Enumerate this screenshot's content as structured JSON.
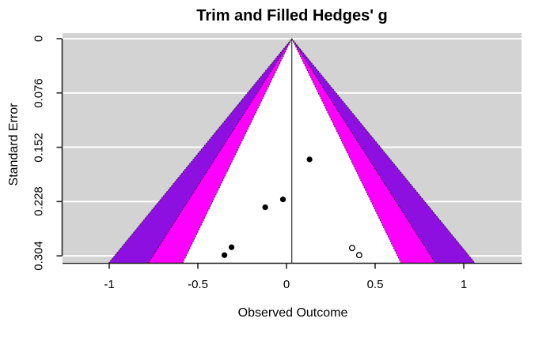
{
  "title": "Trim and Filled Hedges' g",
  "axes": {
    "x": {
      "label": "Observed Outcome",
      "ticks": [
        "-1",
        "-0.5",
        "0",
        "0.5",
        "1"
      ],
      "tick_values": [
        -1,
        -0.5,
        0,
        0.5,
        1
      ]
    },
    "y": {
      "label": "Standard Error",
      "ticks": [
        "0",
        "0.076",
        "0.152",
        "0.228",
        "0.304"
      ],
      "tick_values": [
        0,
        0.076,
        0.152,
        0.228,
        0.304
      ]
    }
  },
  "chart_data": {
    "type": "scatter",
    "subtype": "funnel-plot-trim-and-fill",
    "title": "Trim and Filled Hedges' g",
    "xlabel": "Observed Outcome",
    "ylabel": "Standard Error",
    "xlim": [
      -1.26,
      1.33
    ],
    "se_range": [
      0,
      0.314
    ],
    "y_reversed": true,
    "grid": true,
    "legend": "none",
    "estimate": 0.03,
    "se_max": 0.314,
    "ci_regions": [
      {
        "level": "95%",
        "z": 1.96,
        "fill": "#ffffff"
      },
      {
        "level": "99%",
        "z": 2.576,
        "fill": "#ff00ff"
      },
      {
        "level": "99.9%",
        "z": 3.29,
        "fill": "#8e10e0"
      }
    ],
    "observed_points": [
      {
        "x": 0.13,
        "se": 0.169
      },
      {
        "x": -0.02,
        "se": 0.225
      },
      {
        "x": -0.12,
        "se": 0.236
      },
      {
        "x": -0.31,
        "se": 0.292
      },
      {
        "x": -0.35,
        "se": 0.303
      }
    ],
    "imputed_points": [
      {
        "x": 0.37,
        "se": 0.293
      },
      {
        "x": 0.41,
        "se": 0.303
      }
    ],
    "colors": {
      "plot_background": "#d3d3d3",
      "outer_background": "#ffffff",
      "gridline": "#ffffff",
      "observed_point": "#000000",
      "imputed_point_fill": "#ffffff",
      "imputed_point_stroke": "#000000",
      "axis_line": "#1a1a1a",
      "reference_line": "#333333",
      "region_border_dotted": "#222222"
    }
  }
}
